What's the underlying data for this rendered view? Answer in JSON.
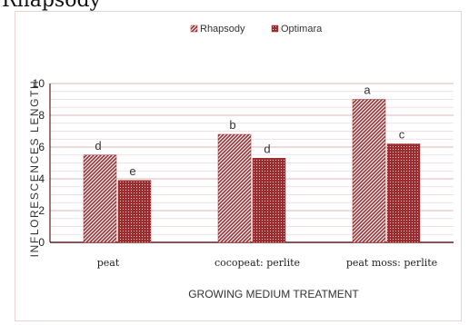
{
  "page": {
    "top_caption": "Rhapsody"
  },
  "chart_data": {
    "type": "bar",
    "title": "",
    "xlabel": "GROWING MEDIUM TREATMENT",
    "ylabel": "INFLORESCENCES LENGTH",
    "ylim": [
      0,
      10
    ],
    "yticks": [
      "0",
      "2",
      "4",
      "6",
      "8",
      "10"
    ],
    "grid": true,
    "legend_position": "top-center",
    "categories": [
      "peat",
      "cocopeat: perlite",
      "peat moss: perlite"
    ],
    "series": [
      {
        "name": "Rhapsody",
        "color": "#9b2c2f",
        "pattern": "diagonal-hatch",
        "values": [
          5.5,
          6.8,
          9.0
        ],
        "labels": [
          "d",
          "b",
          "a"
        ]
      },
      {
        "name": "Optimara",
        "color": "#9b2c2f",
        "pattern": "dotted",
        "values": [
          3.9,
          5.3,
          6.2
        ],
        "labels": [
          "e",
          "d",
          "c"
        ]
      }
    ]
  }
}
